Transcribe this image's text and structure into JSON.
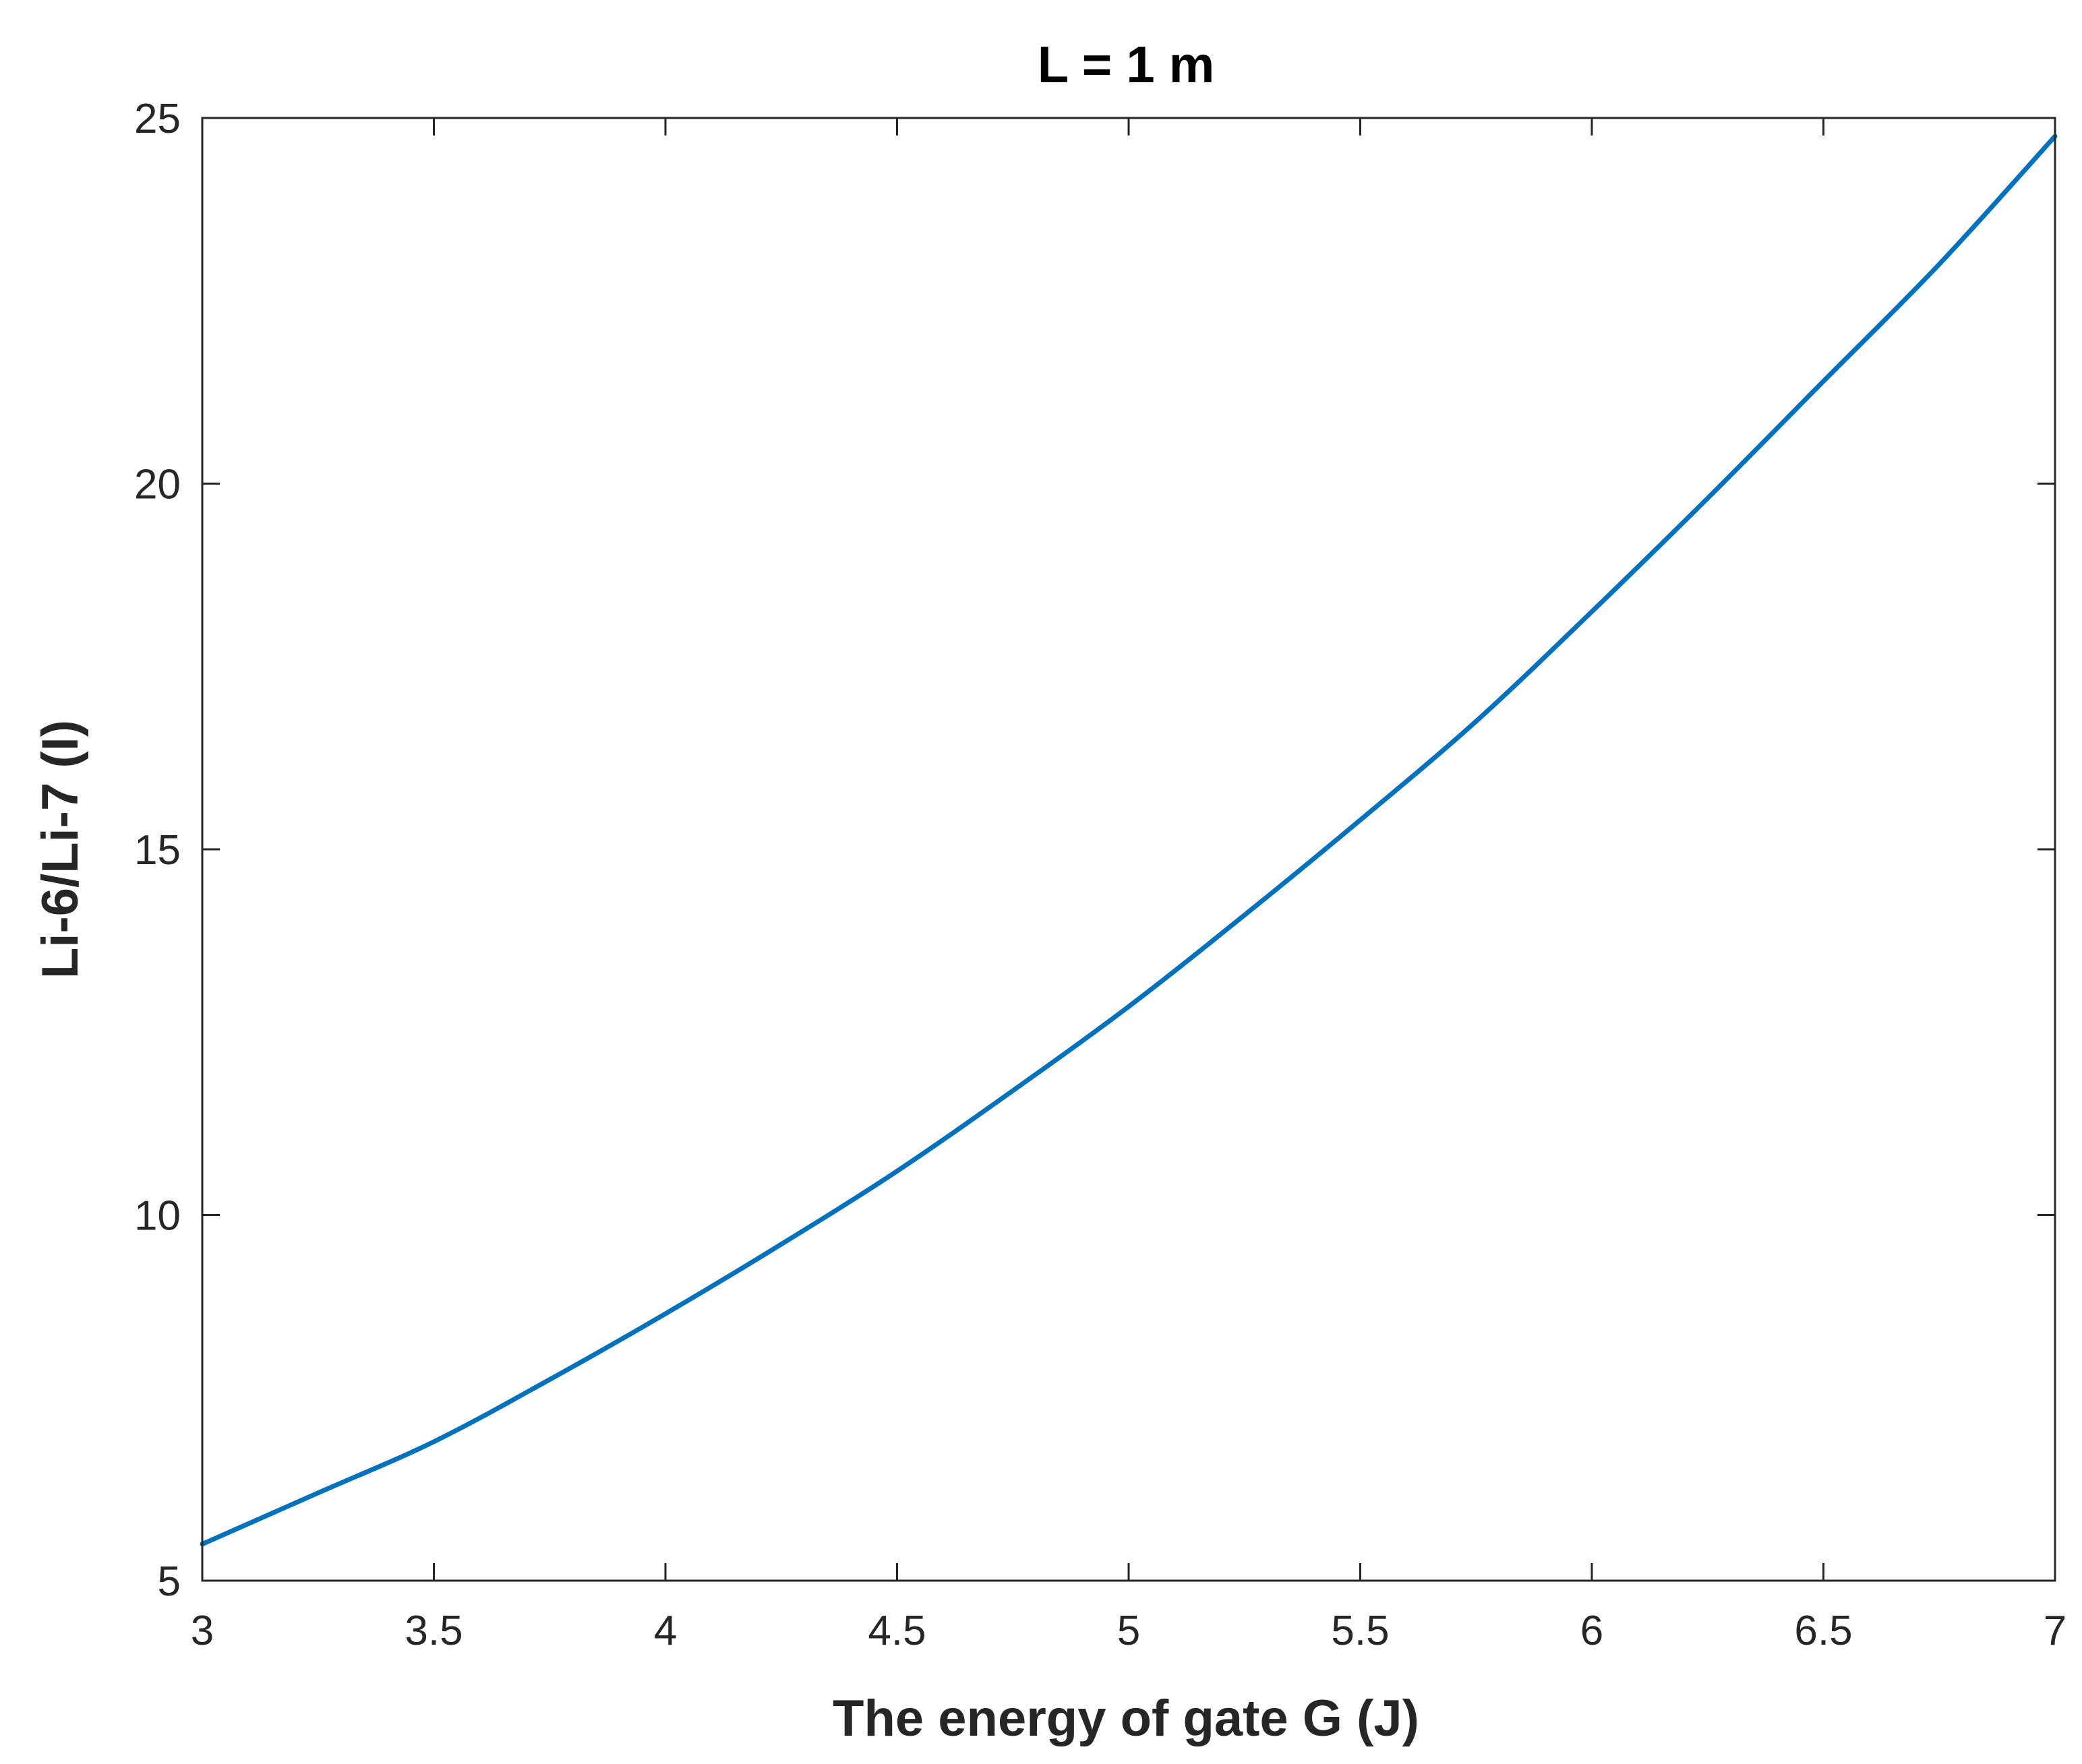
{
  "chart_data": {
    "type": "line",
    "title": "L = 1 m",
    "xlabel": "The energy of gate G (J)",
    "ylabel": "Li-6/Li-7 (I)",
    "xlim": [
      3,
      7
    ],
    "ylim": [
      5,
      25
    ],
    "xticks": [
      3,
      3.5,
      4,
      4.5,
      5,
      5.5,
      6,
      6.5,
      7
    ],
    "xtick_labels": [
      "3",
      "3.5",
      "4",
      "4.5",
      "5",
      "5.5",
      "6",
      "6.5",
      "7"
    ],
    "yticks": [
      5,
      10,
      15,
      20,
      25
    ],
    "ytick_labels": [
      "5",
      "10",
      "15",
      "20",
      "25"
    ],
    "grid": false,
    "series": [
      {
        "color": "#0072BD",
        "x": [
          3,
          3.25,
          3.5,
          3.75,
          4,
          4.25,
          4.5,
          4.75,
          5,
          5.25,
          5.5,
          5.75,
          6,
          6.25,
          6.5,
          6.75,
          7
        ],
        "y": [
          5.5,
          6.2,
          6.9,
          7.75,
          8.65,
          9.6,
          10.6,
          11.7,
          12.85,
          14.1,
          15.4,
          16.75,
          18.25,
          19.8,
          21.4,
          23.0,
          24.75
        ]
      }
    ]
  }
}
